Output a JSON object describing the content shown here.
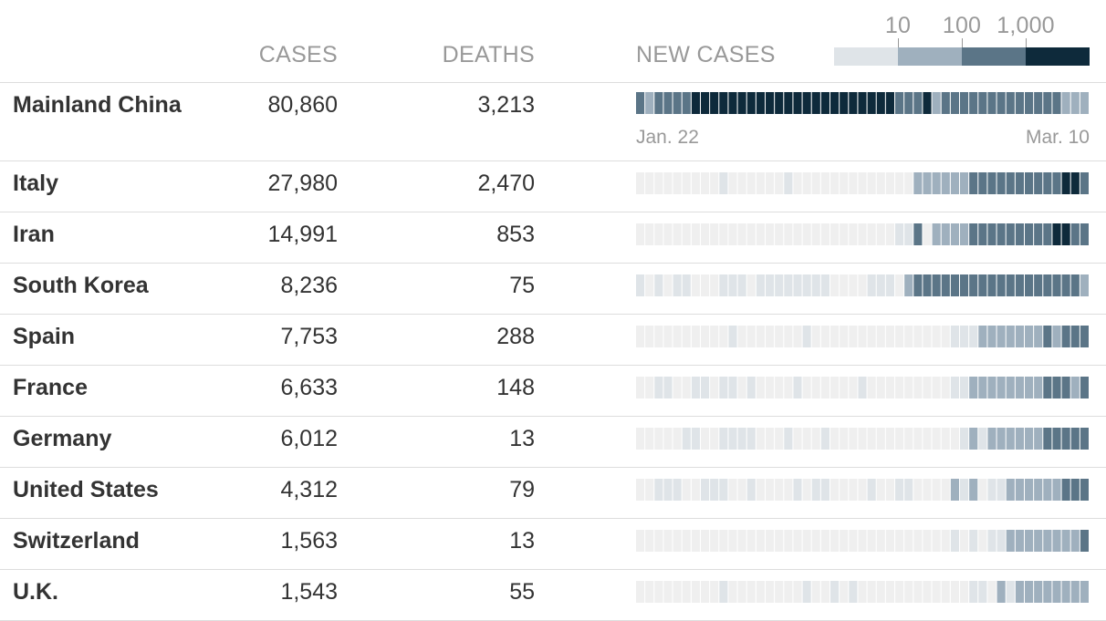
{
  "legend": {
    "labels": [
      "10",
      "100",
      "1,000"
    ],
    "colors": [
      "#dfe4e8",
      "#9fb0be",
      "#5b7587",
      "#0e2a3b"
    ]
  },
  "columns": {
    "cases": "CASES",
    "deaths": "DEATHS",
    "new_cases": "NEW CASES"
  },
  "dates": {
    "start": "Jan. 22",
    "end": "Mar. 10"
  },
  "chart_data": {
    "type": "heatmap",
    "x_range": [
      "Jan. 22",
      "Mar. 10"
    ],
    "color_bins": [
      "<10",
      "10",
      "100",
      "1,000"
    ],
    "series": [
      {
        "name": "Mainland China",
        "cases": "80,860",
        "deaths": "3,213",
        "levels": [
          3,
          2,
          3,
          3,
          3,
          3,
          4,
          4,
          4,
          4,
          4,
          4,
          4,
          4,
          4,
          4,
          4,
          4,
          4,
          4,
          4,
          4,
          4,
          4,
          4,
          4,
          4,
          4,
          3,
          3,
          3,
          4,
          2,
          3,
          3,
          3,
          3,
          3,
          3,
          3,
          3,
          3,
          3,
          3,
          3,
          3,
          2,
          2,
          2
        ]
      },
      {
        "name": "Italy",
        "cases": "27,980",
        "deaths": "2,470",
        "levels": [
          0,
          0,
          0,
          0,
          0,
          0,
          0,
          0,
          0,
          1,
          0,
          0,
          0,
          0,
          0,
          0,
          1,
          0,
          0,
          0,
          0,
          0,
          0,
          0,
          0,
          0,
          0,
          0,
          0,
          0,
          2,
          2,
          2,
          2,
          2,
          2,
          3,
          3,
          3,
          3,
          3,
          3,
          3,
          3,
          3,
          3,
          4,
          4,
          3
        ]
      },
      {
        "name": "Iran",
        "cases": "14,991",
        "deaths": "853",
        "levels": [
          0,
          0,
          0,
          0,
          0,
          0,
          0,
          0,
          0,
          0,
          0,
          0,
          0,
          0,
          0,
          0,
          0,
          0,
          0,
          0,
          0,
          0,
          0,
          0,
          0,
          0,
          0,
          0,
          1,
          1,
          3,
          0,
          2,
          2,
          2,
          2,
          3,
          3,
          3,
          3,
          3,
          3,
          3,
          3,
          3,
          4,
          4,
          3,
          3
        ]
      },
      {
        "name": "South Korea",
        "cases": "8,236",
        "deaths": "75",
        "levels": [
          1,
          0,
          1,
          0,
          1,
          1,
          0,
          0,
          0,
          1,
          1,
          1,
          0,
          1,
          1,
          1,
          1,
          1,
          1,
          1,
          1,
          0,
          0,
          0,
          0,
          1,
          1,
          1,
          0,
          2,
          3,
          3,
          3,
          3,
          3,
          3,
          3,
          3,
          3,
          3,
          3,
          3,
          3,
          3,
          3,
          3,
          3,
          3,
          2
        ]
      },
      {
        "name": "Spain",
        "cases": "7,753",
        "deaths": "288",
        "levels": [
          0,
          0,
          0,
          0,
          0,
          0,
          0,
          0,
          0,
          0,
          1,
          0,
          0,
          0,
          0,
          0,
          0,
          0,
          1,
          0,
          0,
          0,
          0,
          0,
          0,
          0,
          0,
          0,
          0,
          0,
          0,
          0,
          0,
          0,
          1,
          1,
          1,
          2,
          2,
          2,
          2,
          2,
          2,
          2,
          3,
          2,
          3,
          3,
          3
        ]
      },
      {
        "name": "France",
        "cases": "6,633",
        "deaths": "148",
        "levels": [
          0,
          0,
          1,
          1,
          0,
          0,
          1,
          1,
          0,
          1,
          1,
          0,
          1,
          0,
          0,
          0,
          0,
          1,
          0,
          0,
          0,
          0,
          0,
          0,
          1,
          0,
          0,
          0,
          0,
          0,
          0,
          0,
          0,
          0,
          1,
          1,
          2,
          2,
          2,
          2,
          2,
          2,
          2,
          2,
          3,
          3,
          3,
          2,
          3
        ]
      },
      {
        "name": "Germany",
        "cases": "6,012",
        "deaths": "13",
        "levels": [
          0,
          0,
          0,
          0,
          0,
          1,
          1,
          0,
          0,
          1,
          1,
          1,
          1,
          0,
          0,
          0,
          1,
          0,
          0,
          0,
          1,
          0,
          0,
          0,
          0,
          0,
          0,
          0,
          0,
          0,
          0,
          0,
          0,
          0,
          0,
          1,
          2,
          1,
          2,
          2,
          2,
          2,
          2,
          2,
          3,
          3,
          3,
          3,
          3
        ]
      },
      {
        "name": "United States",
        "cases": "4,312",
        "deaths": "79",
        "levels": [
          0,
          0,
          1,
          1,
          1,
          0,
          0,
          1,
          1,
          1,
          0,
          0,
          1,
          0,
          0,
          0,
          0,
          1,
          0,
          1,
          1,
          0,
          0,
          0,
          0,
          1,
          0,
          0,
          1,
          1,
          0,
          0,
          0,
          0,
          2,
          1,
          2,
          0,
          1,
          1,
          2,
          2,
          2,
          2,
          2,
          2,
          3,
          3,
          3
        ]
      },
      {
        "name": "Switzerland",
        "cases": "1,563",
        "deaths": "13",
        "levels": [
          0,
          0,
          0,
          0,
          0,
          0,
          0,
          0,
          0,
          0,
          0,
          0,
          0,
          0,
          0,
          0,
          0,
          0,
          0,
          0,
          0,
          0,
          0,
          0,
          0,
          0,
          0,
          0,
          0,
          0,
          0,
          0,
          0,
          0,
          1,
          0,
          1,
          0,
          1,
          1,
          2,
          2,
          2,
          2,
          2,
          2,
          2,
          2,
          3
        ]
      },
      {
        "name": "U.K.",
        "cases": "1,543",
        "deaths": "55",
        "levels": [
          0,
          0,
          0,
          0,
          0,
          0,
          0,
          0,
          0,
          1,
          0,
          0,
          0,
          0,
          0,
          0,
          0,
          0,
          1,
          0,
          0,
          1,
          0,
          1,
          0,
          0,
          0,
          0,
          0,
          0,
          0,
          0,
          0,
          0,
          0,
          0,
          1,
          1,
          0,
          2,
          1,
          2,
          2,
          2,
          2,
          2,
          2,
          2,
          2
        ]
      }
    ]
  }
}
